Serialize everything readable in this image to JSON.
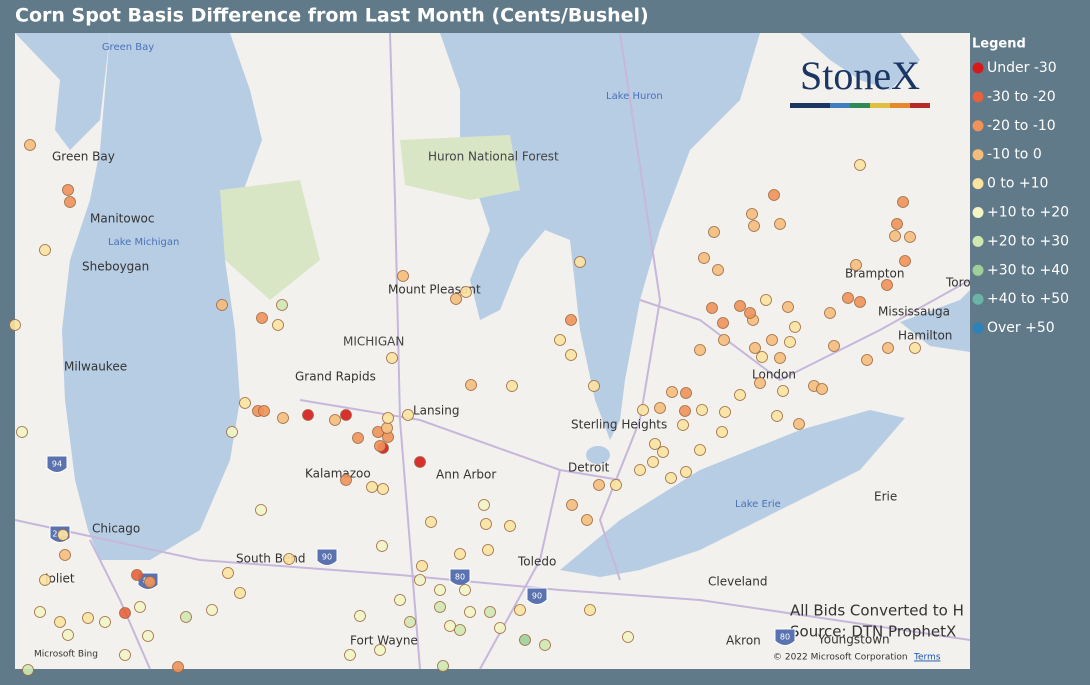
{
  "title": "Corn Spot Basis Difference from Last Month (Cents/Bushel)",
  "legend": {
    "title": "Legend",
    "items": [
      {
        "label": "Under -30",
        "color": "#d7191c"
      },
      {
        "label": "-30 to -20",
        "color": "#e8603c"
      },
      {
        "label": "-20 to -10",
        "color": "#f0925a"
      },
      {
        "label": "-10 to 0",
        "color": "#f5bd7c"
      },
      {
        "label": "0 to +10",
        "color": "#fbe3a0"
      },
      {
        "label": "+10 to +20",
        "color": "#f2f5c4"
      },
      {
        "label": "+20 to +30",
        "color": "#cfe8b0"
      },
      {
        "label": "+30 to +40",
        "color": "#9fd09a"
      },
      {
        "label": "+40 to +50",
        "color": "#6bb3a6"
      },
      {
        "label": "Over +50",
        "color": "#2b83ba"
      }
    ]
  },
  "map": {
    "labels": [
      "Green Bay",
      "Green Bay",
      "Manitowoc",
      "Lake Michigan",
      "Sheboygan",
      "Milwaukee",
      "Chicago",
      "Joliet",
      "South Bend",
      "Kalamazoo",
      "Grand Rapids",
      "Lansing",
      "Ann Arbor",
      "Detroit",
      "Sterling Heights",
      "Toledo",
      "Fort Wayne",
      "Cleveland",
      "Akron",
      "Youngstown",
      "Erie",
      "Lake Erie",
      "London",
      "Hamilton",
      "Mississauga",
      "Brampton",
      "Toro",
      "Lake Huron",
      "Huron National Forest",
      "Mount Pleasant",
      "MICHIGAN"
    ],
    "shields": [
      "94",
      "294",
      "80",
      "90",
      "80",
      "90",
      "80"
    ]
  },
  "logo": "StoneX",
  "notes": [
    "All Bids Converted to H",
    "Source: DTN ProphetX"
  ],
  "attribution": {
    "bing": "Microsoft Bing",
    "copyright": "© 2022 Microsoft Corporation",
    "terms": "Terms"
  }
}
